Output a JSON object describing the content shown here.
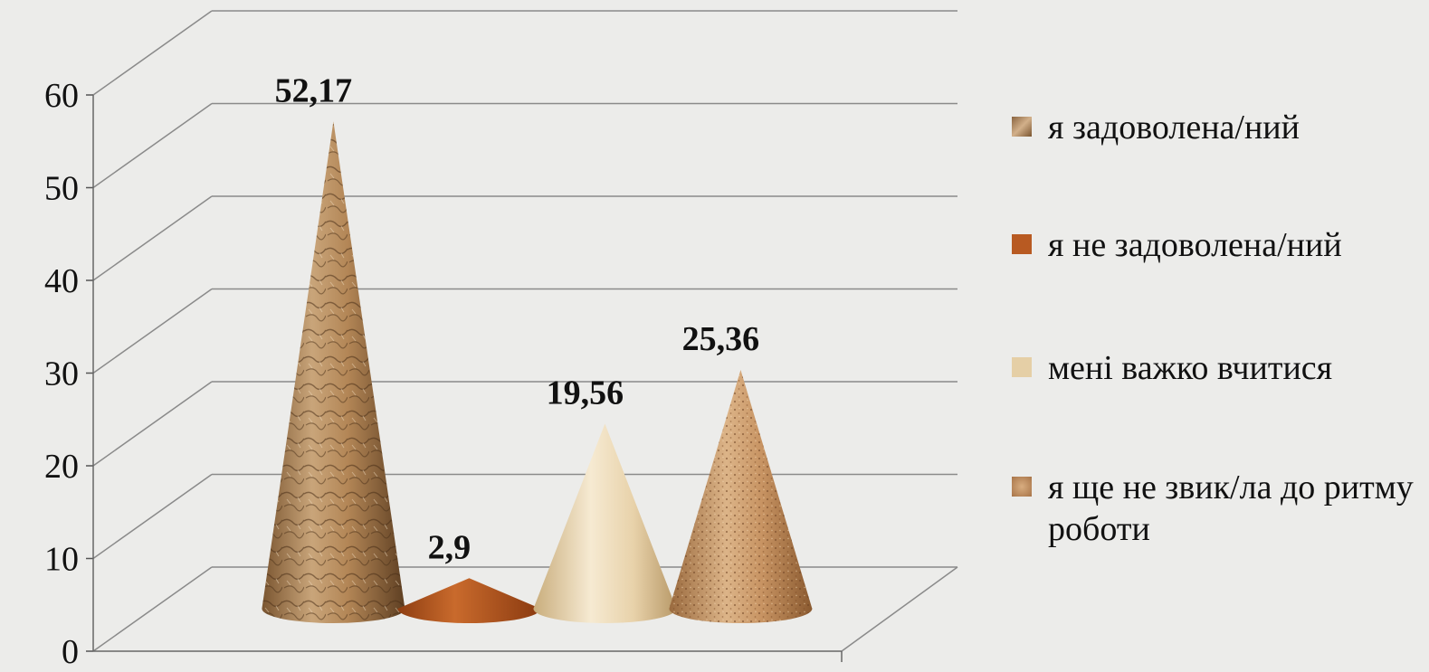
{
  "chart_data": {
    "type": "bar",
    "shape": "3d-cone",
    "categories": [
      "я задоволена/ний",
      "я не задоволена/ний",
      "мені важко вчитися",
      "я ще не звик/ла до ритму роботи"
    ],
    "values": [
      52.17,
      2.9,
      19.56,
      25.36
    ],
    "data_labels": [
      "52,17",
      "2,9",
      "19,56",
      "25,36"
    ],
    "colors": [
      "#b58a5c",
      "#b85a22",
      "#e5cfa6",
      "#c08a5a"
    ],
    "ylim": [
      0,
      60
    ],
    "yticks": [
      0,
      10,
      20,
      30,
      40,
      50,
      60
    ],
    "grid": true,
    "legend_position": "right"
  }
}
